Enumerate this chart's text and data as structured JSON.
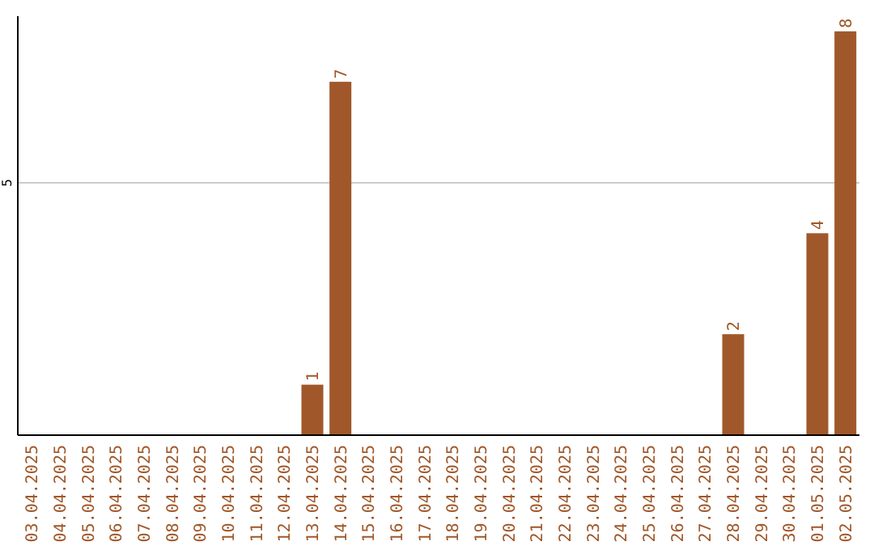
{
  "chart_data": {
    "type": "bar",
    "categories": [
      "03.04.2025",
      "04.04.2025",
      "05.04.2025",
      "06.04.2025",
      "07.04.2025",
      "08.04.2025",
      "09.04.2025",
      "10.04.2025",
      "11.04.2025",
      "12.04.2025",
      "13.04.2025",
      "14.04.2025",
      "15.04.2025",
      "16.04.2025",
      "17.04.2025",
      "18.04.2025",
      "19.04.2025",
      "20.04.2025",
      "21.04.2025",
      "22.04.2025",
      "23.04.2025",
      "24.04.2025",
      "25.04.2025",
      "26.04.2025",
      "27.04.2025",
      "28.04.2025",
      "29.04.2025",
      "30.04.2025",
      "01.05.2025",
      "02.05.2025"
    ],
    "values": [
      0,
      0,
      0,
      0,
      0,
      0,
      0,
      0,
      0,
      0,
      1,
      7,
      0,
      0,
      0,
      0,
      0,
      0,
      0,
      0,
      0,
      0,
      0,
      0,
      0,
      2,
      0,
      0,
      4,
      8
    ],
    "value_labels": [
      null,
      null,
      null,
      null,
      null,
      null,
      null,
      null,
      null,
      null,
      "1",
      "7",
      null,
      null,
      null,
      null,
      null,
      null,
      null,
      null,
      null,
      null,
      null,
      null,
      null,
      "2",
      null,
      null,
      "4",
      "8"
    ],
    "color": "#a0582a",
    "ylim": [
      0,
      8.3
    ],
    "yticks": [
      5
    ],
    "grid": "y"
  }
}
